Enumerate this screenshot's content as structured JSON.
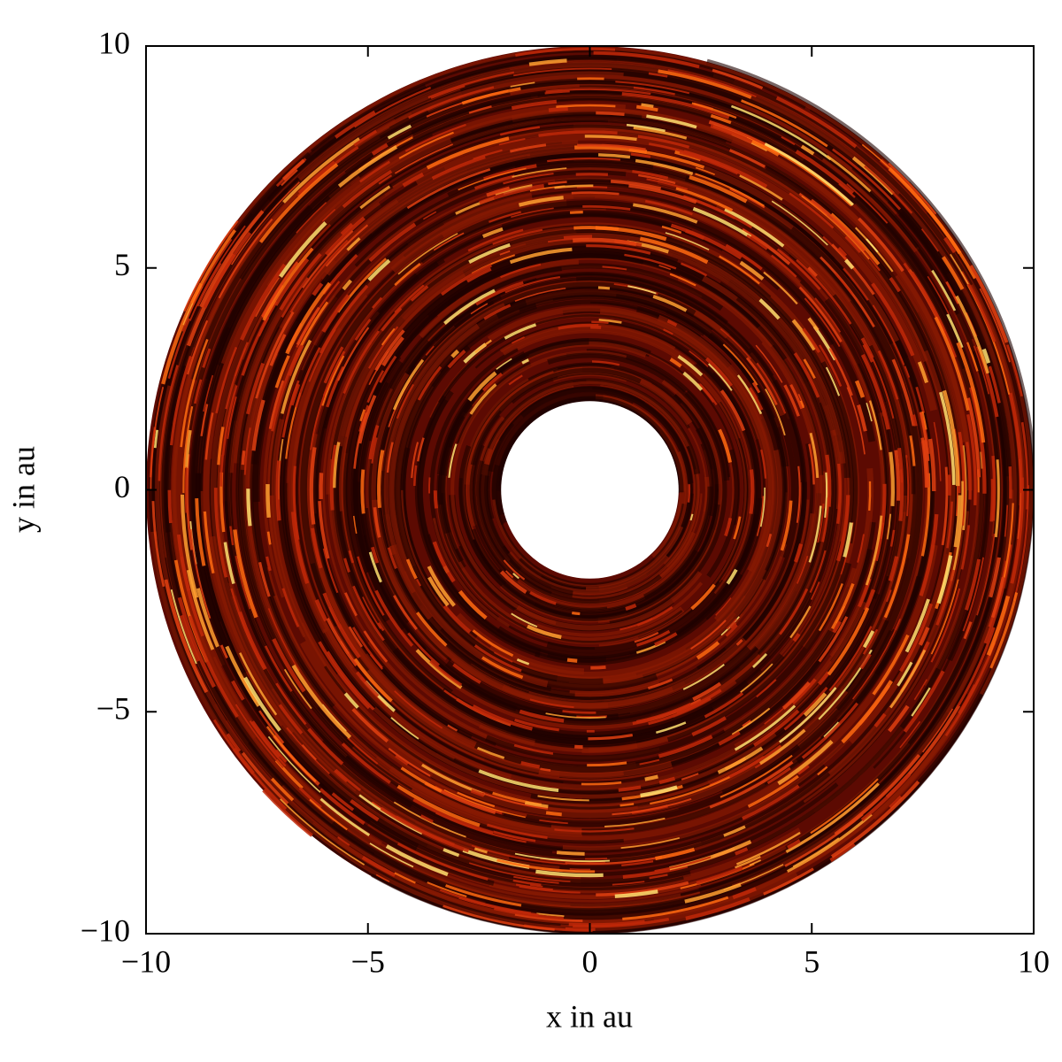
{
  "chart_data": {
    "type": "disk",
    "xlabel": "x in au",
    "ylabel": "y in au",
    "xlim": [
      -10,
      10
    ],
    "ylim": [
      -10,
      10
    ],
    "xticks": [
      {
        "value": -10,
        "label": "−10"
      },
      {
        "value": -5,
        "label": "−5"
      },
      0,
      5,
      10
    ],
    "yticks": [
      {
        "value": -10,
        "label": "−10"
      },
      {
        "value": -5,
        "label": "−5"
      },
      0,
      5,
      10
    ],
    "inner_radius": 2,
    "outer_radius": 10
  }
}
